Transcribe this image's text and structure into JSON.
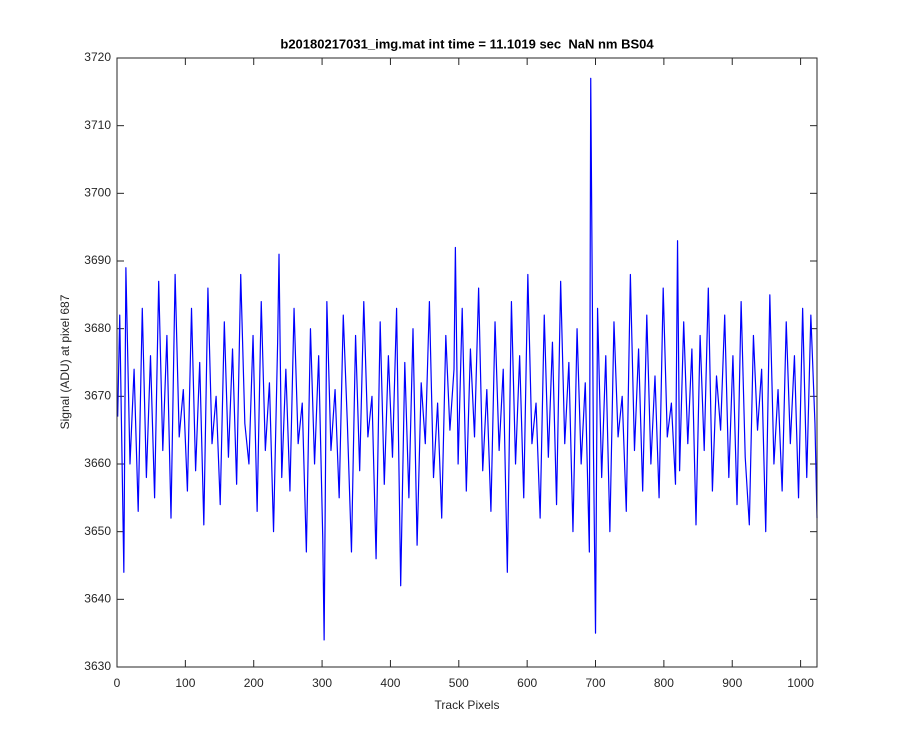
{
  "chart_data": {
    "type": "line",
    "title": "b20180217031_img.mat int time = 11.1019 sec  NaN nm BS04",
    "xlabel": "Track Pixels",
    "ylabel": "Signal (ADU) at pixel 687",
    "color": "#0000ff",
    "xlim": [
      0,
      1024
    ],
    "ylim": [
      3630,
      3720
    ],
    "xticks": [
      0,
      100,
      200,
      300,
      400,
      500,
      600,
      700,
      800,
      900,
      1000
    ],
    "yticks": [
      3630,
      3640,
      3650,
      3660,
      3670,
      3680,
      3690,
      3700,
      3710,
      3720
    ],
    "grid": false,
    "x": [
      1,
      4,
      7,
      10,
      13,
      19,
      25,
      31,
      37,
      43,
      49,
      55,
      61,
      67,
      73,
      79,
      85,
      91,
      97,
      103,
      109,
      115,
      121,
      127,
      133,
      139,
      145,
      151,
      157,
      163,
      169,
      175,
      181,
      187,
      193,
      199,
      205,
      211,
      217,
      223,
      229,
      235,
      237,
      241,
      247,
      253,
      259,
      265,
      271,
      277,
      283,
      289,
      295,
      301,
      303,
      307,
      313,
      319,
      325,
      331,
      337,
      343,
      349,
      355,
      361,
      367,
      373,
      379,
      385,
      391,
      397,
      403,
      409,
      415,
      421,
      427,
      433,
      439,
      445,
      451,
      457,
      463,
      469,
      475,
      481,
      487,
      493,
      495,
      499,
      505,
      511,
      517,
      523,
      529,
      535,
      541,
      547,
      553,
      559,
      565,
      571,
      577,
      583,
      589,
      595,
      601,
      607,
      613,
      619,
      625,
      631,
      637,
      643,
      649,
      655,
      661,
      667,
      673,
      679,
      685,
      691,
      693,
      697,
      700,
      703,
      709,
      715,
      721,
      727,
      733,
      739,
      745,
      751,
      757,
      763,
      769,
      775,
      781,
      787,
      793,
      799,
      805,
      811,
      817,
      820,
      823,
      829,
      835,
      841,
      847,
      853,
      859,
      865,
      871,
      877,
      883,
      889,
      895,
      901,
      907,
      913,
      919,
      925,
      931,
      937,
      943,
      949,
      955,
      961,
      967,
      973,
      979,
      985,
      991,
      997,
      1003,
      1009,
      1015,
      1021,
      1024
    ],
    "values": [
      3667,
      3682,
      3663,
      3644,
      3689,
      3660,
      3674,
      3653,
      3683,
      3658,
      3676,
      3655,
      3687,
      3662,
      3679,
      3652,
      3688,
      3664,
      3671,
      3656,
      3683,
      3659,
      3675,
      3651,
      3686,
      3663,
      3670,
      3654,
      3681,
      3661,
      3677,
      3657,
      3688,
      3666,
      3660,
      3679,
      3653,
      3684,
      3662,
      3672,
      3650,
      3678,
      3691,
      3658,
      3674,
      3656,
      3683,
      3663,
      3669,
      3647,
      3680,
      3660,
      3676,
      3649,
      3634,
      3684,
      3662,
      3671,
      3655,
      3682,
      3666,
      3647,
      3679,
      3659,
      3684,
      3664,
      3670,
      3646,
      3681,
      3657,
      3676,
      3661,
      3683,
      3642,
      3675,
      3655,
      3680,
      3648,
      3672,
      3663,
      3684,
      3658,
      3669,
      3652,
      3679,
      3665,
      3674,
      3692,
      3660,
      3683,
      3656,
      3677,
      3664,
      3686,
      3659,
      3671,
      3653,
      3681,
      3662,
      3674,
      3644,
      3684,
      3660,
      3676,
      3655,
      3688,
      3663,
      3669,
      3652,
      3682,
      3661,
      3678,
      3654,
      3687,
      3663,
      3675,
      3650,
      3680,
      3660,
      3672,
      3647,
      3717,
      3662,
      3635,
      3683,
      3658,
      3676,
      3650,
      3681,
      3664,
      3670,
      3653,
      3688,
      3662,
      3677,
      3656,
      3682,
      3660,
      3673,
      3655,
      3686,
      3664,
      3669,
      3657,
      3693,
      3659,
      3681,
      3663,
      3677,
      3651,
      3679,
      3662,
      3686,
      3656,
      3673,
      3665,
      3682,
      3658,
      3676,
      3654,
      3684,
      3661,
      3651,
      3679,
      3665,
      3674,
      3650,
      3685,
      3660,
      3671,
      3656,
      3681,
      3663,
      3676,
      3655,
      3683,
      3658,
      3682,
      3666,
      3652
    ]
  }
}
